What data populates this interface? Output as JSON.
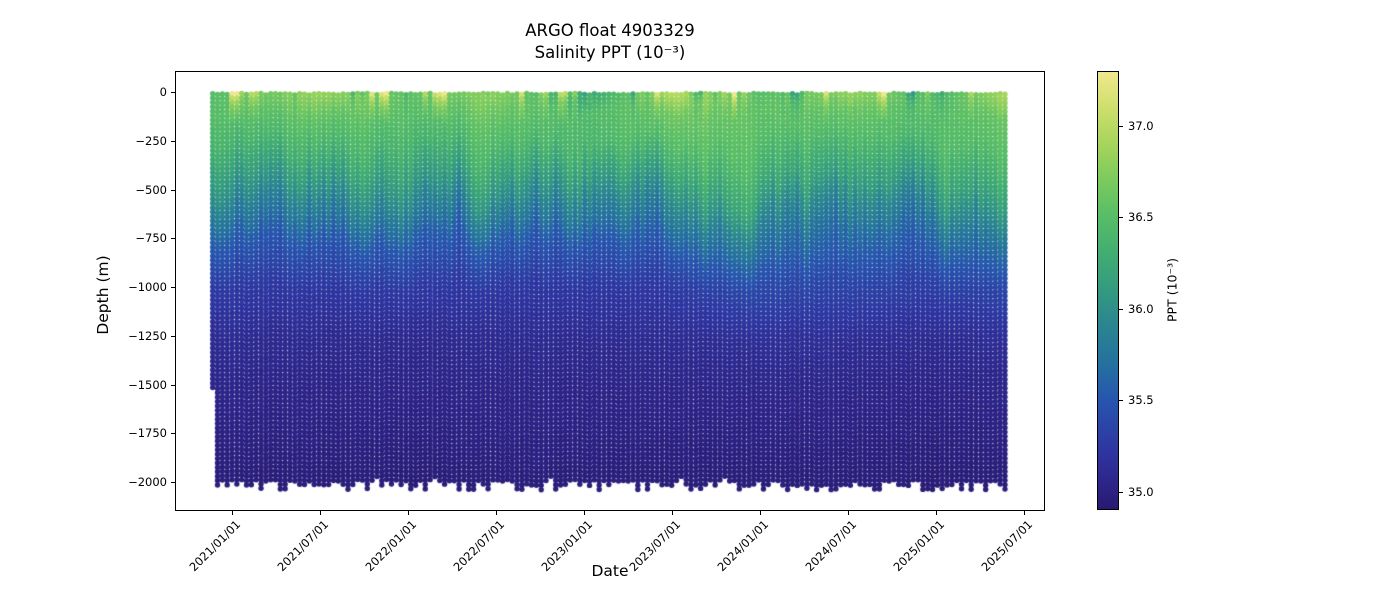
{
  "figure": {
    "title_line1": "ARGO float 4903329",
    "title_line2": "Salinity PPT (10⁻³)",
    "xlabel": "Date",
    "ylabel": "Depth (m)",
    "colorbar_label": "PPT (10⁻³)",
    "background_color": "#ffffff",
    "axis_color": "#000000"
  },
  "axes": {
    "x_tick_labels": [
      "2021/01/01",
      "2021/07/01",
      "2022/01/01",
      "2022/07/01",
      "2023/01/01",
      "2023/07/01",
      "2024/01/01",
      "2024/07/01",
      "2025/01/01",
      "2025/07/01"
    ],
    "y_tick_labels": [
      "0",
      "−250",
      "−500",
      "−750",
      "−1000",
      "−1250",
      "−1500",
      "−1750",
      "−2000"
    ],
    "y_tick_values_m": [
      0,
      -250,
      -500,
      -750,
      -1000,
      -1250,
      -1500,
      -1750,
      -2000
    ],
    "colorbar_tick_labels": [
      "37.0",
      "36.5",
      "36.0",
      "35.5",
      "35.0"
    ],
    "colorbar_tick_values": [
      37.0,
      36.5,
      36.0,
      35.5,
      35.0
    ]
  },
  "chart_data": {
    "type": "scatter",
    "title": "ARGO float 4903329 — Salinity PPT (10⁻³)",
    "xlabel": "Date",
    "ylabel": "Depth (m)",
    "x_range_dates": [
      "2020/11/20",
      "2025/05/20"
    ],
    "ylim_m": [
      -2050,
      0
    ],
    "profile_cycle_days": 10,
    "max_profile_depth_m": -2045,
    "first_profile_depth_m": -1520,
    "color_scale": {
      "label": "PPT (10⁻³)",
      "min": 34.9,
      "max": 37.3,
      "colormap_name": "haline",
      "stops": [
        {
          "pos": 0.0,
          "color": "#281a70"
        },
        {
          "pos": 0.05,
          "color": "#2d2386"
        },
        {
          "pos": 0.13,
          "color": "#2e35a0"
        },
        {
          "pos": 0.25,
          "color": "#2755ae"
        },
        {
          "pos": 0.33,
          "color": "#24709f"
        },
        {
          "pos": 0.42,
          "color": "#2a8590"
        },
        {
          "pos": 0.5,
          "color": "#339a80"
        },
        {
          "pos": 0.58,
          "color": "#41ac72"
        },
        {
          "pos": 0.67,
          "color": "#57bd67"
        },
        {
          "pos": 0.75,
          "color": "#7aca5e"
        },
        {
          "pos": 0.83,
          "color": "#a3d45b"
        },
        {
          "pos": 0.92,
          "color": "#cfdf6d"
        },
        {
          "pos": 1.0,
          "color": "#f0e88d"
        }
      ]
    },
    "grid": {
      "comment": "Estimated salinity (PPT) read from the figure at coarse date x depth grid",
      "dates": [
        "2020/11/20",
        "2021/07/01",
        "2022/01/01",
        "2022/07/01",
        "2023/01/01",
        "2023/07/01",
        "2024/01/01",
        "2024/07/01",
        "2025/01/01",
        "2025/05/20"
      ],
      "dates_decimal": [
        2020.885,
        2021.5,
        2022.0,
        2022.5,
        2023.0,
        2023.5,
        2024.0,
        2024.5,
        2025.0,
        2025.385
      ],
      "depths_m": [
        0,
        -100,
        -250,
        -500,
        -750,
        -1000,
        -1250,
        -1500,
        -1750,
        -2000
      ],
      "salinity_ppt": [
        [
          36.5,
          36.5,
          36.35,
          36.0,
          35.55,
          35.25,
          35.12,
          35.05,
          35.0,
          34.96
        ],
        [
          36.85,
          36.6,
          36.4,
          35.95,
          35.5,
          35.22,
          35.1,
          35.04,
          35.0,
          34.96
        ],
        [
          36.55,
          36.5,
          36.35,
          36.0,
          35.55,
          35.25,
          35.1,
          35.05,
          35.0,
          34.96
        ],
        [
          36.8,
          36.6,
          36.45,
          36.05,
          35.55,
          35.22,
          35.1,
          35.04,
          35.0,
          34.96
        ],
        [
          36.15,
          36.45,
          36.4,
          35.95,
          35.5,
          35.22,
          35.1,
          35.04,
          35.0,
          34.96
        ],
        [
          37.0,
          36.65,
          36.5,
          36.05,
          35.6,
          35.25,
          35.12,
          35.05,
          35.0,
          34.96
        ],
        [
          36.5,
          36.55,
          36.5,
          36.25,
          35.8,
          35.4,
          35.15,
          35.06,
          35.0,
          34.96
        ],
        [
          36.85,
          36.6,
          36.45,
          36.1,
          35.65,
          35.35,
          35.14,
          35.05,
          35.0,
          34.96
        ],
        [
          36.4,
          36.5,
          36.45,
          36.1,
          35.65,
          35.3,
          35.12,
          35.05,
          35.0,
          34.96
        ],
        [
          36.9,
          36.6,
          36.5,
          36.15,
          35.7,
          35.35,
          35.14,
          35.05,
          35.0,
          34.96
        ]
      ]
    }
  }
}
